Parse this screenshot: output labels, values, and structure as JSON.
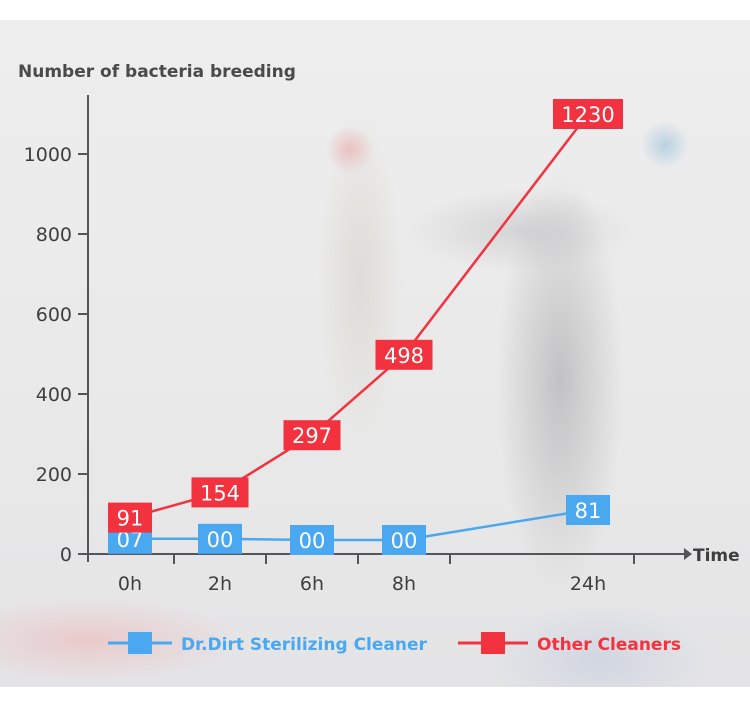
{
  "chart_data": {
    "type": "line",
    "ylabel": "Number of bacteria breeding",
    "xlabel": "Time",
    "categories": [
      "0h",
      "2h",
      "6h",
      "8h",
      "24h"
    ],
    "ylim": [
      0,
      1150
    ],
    "yticks": [
      0,
      200,
      400,
      600,
      800,
      1000
    ],
    "grid": false,
    "legend_position": "bottom",
    "series": [
      {
        "name": "Dr.Dirt Sterilizing Cleaner",
        "color": "#4aa8f0",
        "values": [
          7,
          0,
          0,
          0,
          81
        ],
        "labels": [
          "07",
          "00",
          "00",
          "00",
          "81"
        ],
        "plot_y": [
          38,
          38,
          35,
          35,
          110
        ]
      },
      {
        "name": "Other Cleaners",
        "color": "#f2323e",
        "values": [
          91,
          154,
          297,
          498,
          1230
        ],
        "labels": [
          "91",
          "154",
          "297",
          "498",
          "1230"
        ],
        "plot_y": [
          91,
          154,
          297,
          498,
          1100
        ]
      }
    ]
  }
}
